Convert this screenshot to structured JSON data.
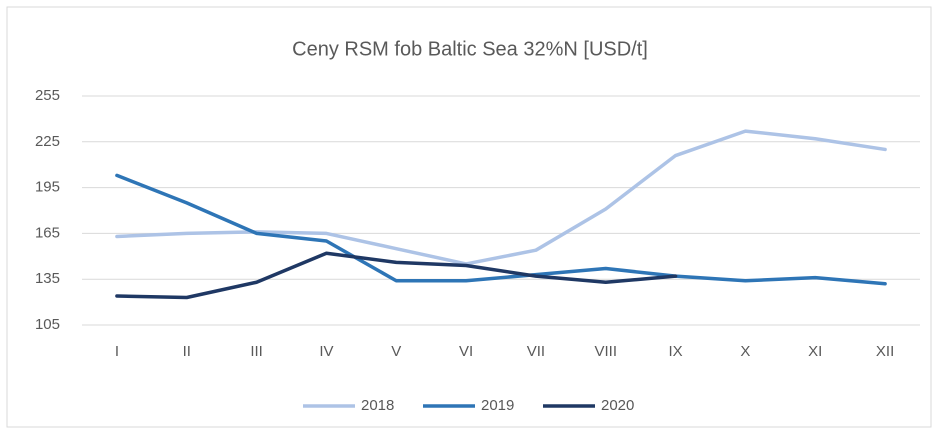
{
  "chart_data": {
    "type": "line",
    "title": "Ceny RSM fob Baltic Sea 32%N [USD/t]",
    "categories": [
      "I",
      "II",
      "III",
      "IV",
      "V",
      "VI",
      "VII",
      "VIII",
      "IX",
      "X",
      "XI",
      "XII"
    ],
    "series": [
      {
        "name": "2018",
        "color": "#adc3e6",
        "values": [
          163,
          165,
          166,
          165,
          155,
          145,
          154,
          181,
          216,
          232,
          227,
          220
        ]
      },
      {
        "name": "2019",
        "color": "#2e75b6",
        "values": [
          203,
          185,
          165,
          160,
          134,
          134,
          138,
          142,
          137,
          134,
          136,
          132
        ]
      },
      {
        "name": "2020",
        "color": "#1f3864",
        "values": [
          124,
          123,
          133,
          152,
          146,
          144,
          137,
          133,
          137,
          null,
          null,
          null
        ]
      }
    ],
    "ylim": [
      105,
      255
    ],
    "yticks": [
      105,
      135,
      165,
      195,
      225,
      255
    ],
    "grid": true,
    "legend": "bottom"
  }
}
